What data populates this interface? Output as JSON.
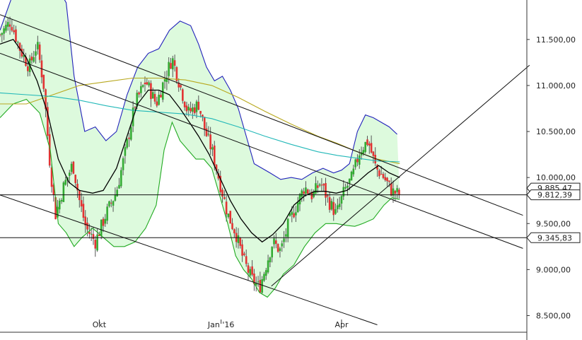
{
  "chart_data": {
    "type": "candlestick",
    "title": "",
    "xlabel": "",
    "ylabel": "",
    "ylim": [
      8250,
      12000
    ],
    "grid": false,
    "x_ticks": [
      {
        "label": "Okt",
        "day": 75
      },
      {
        "label": "Jan '16",
        "day": 167
      },
      {
        "label": "Apr",
        "day": 258
      }
    ],
    "y_ticks": [
      {
        "label": "11.500,00",
        "value": 11500
      },
      {
        "label": "11.000,00",
        "value": 11000
      },
      {
        "label": "10.500,00",
        "value": 10500
      },
      {
        "label": "10.000,00",
        "value": 10000
      },
      {
        "label": "9.500,00",
        "value": 9500
      },
      {
        "label": "9.000,00",
        "value": 9000
      },
      {
        "label": "8.500,00",
        "value": 8500
      }
    ],
    "price_tags": [
      {
        "label": "9.885,47",
        "value": 9885
      },
      {
        "label": "9.812,39",
        "value": 9812
      },
      {
        "label": "9.345,83",
        "value": 9346
      }
    ],
    "horizontal_lines": [
      9812,
      9346
    ],
    "trend_lines": [
      {
        "name": "",
        "from": [
          0,
          11770
        ],
        "to": [
          395,
          9590
        ]
      },
      {
        "name": "",
        "from": [
          0,
          11350
        ],
        "to": [
          395,
          9230
        ]
      },
      {
        "name": "",
        "from": [
          0,
          9810
        ],
        "to": [
          285,
          8400
        ]
      },
      {
        "name": "",
        "from": [
          205,
          8820
        ],
        "to": [
          400,
          11220
        ]
      }
    ],
    "series": [
      {
        "name": "",
        "kind": "close_path",
        "points": [
          [
            0,
            11550
          ],
          [
            8,
            11700
          ],
          [
            15,
            11400
          ],
          [
            22,
            11200
          ],
          [
            28,
            11450
          ],
          [
            33,
            11000
          ],
          [
            38,
            10100
          ],
          [
            42,
            9600
          ],
          [
            48,
            9900
          ],
          [
            55,
            10150
          ],
          [
            60,
            9750
          ],
          [
            65,
            9450
          ],
          [
            72,
            9300
          ],
          [
            80,
            9600
          ],
          [
            88,
            9850
          ],
          [
            95,
            10300
          ],
          [
            102,
            10800
          ],
          [
            110,
            11050
          ],
          [
            118,
            10800
          ],
          [
            125,
            11100
          ],
          [
            130,
            11300
          ],
          [
            136,
            11000
          ],
          [
            142,
            10700
          ],
          [
            150,
            10800
          ],
          [
            155,
            10500
          ],
          [
            160,
            10300
          ],
          [
            166,
            9950
          ],
          [
            172,
            9600
          ],
          [
            178,
            9400
          ],
          [
            184,
            9100
          ],
          [
            190,
            8900
          ],
          [
            196,
            8800
          ],
          [
            200,
            9000
          ],
          [
            206,
            9300
          ],
          [
            212,
            9200
          ],
          [
            218,
            9500
          ],
          [
            224,
            9700
          ],
          [
            230,
            9900
          ],
          [
            236,
            9800
          ],
          [
            242,
            9950
          ],
          [
            248,
            9750
          ],
          [
            254,
            9600
          ],
          [
            260,
            9850
          ],
          [
            266,
            10000
          ],
          [
            272,
            10300
          ],
          [
            278,
            10400
          ],
          [
            284,
            10100
          ],
          [
            290,
            10000
          ],
          [
            296,
            9850
          ],
          [
            302,
            9812
          ]
        ]
      },
      {
        "name": "",
        "kind": "sma_20",
        "points": [
          [
            0,
            11450
          ],
          [
            10,
            11500
          ],
          [
            20,
            11300
          ],
          [
            28,
            11050
          ],
          [
            36,
            10700
          ],
          [
            44,
            10200
          ],
          [
            52,
            9950
          ],
          [
            60,
            9860
          ],
          [
            70,
            9830
          ],
          [
            78,
            9860
          ],
          [
            88,
            10100
          ],
          [
            96,
            10450
          ],
          [
            104,
            10800
          ],
          [
            112,
            10950
          ],
          [
            120,
            10950
          ],
          [
            128,
            10900
          ],
          [
            136,
            10750
          ],
          [
            144,
            10580
          ],
          [
            150,
            10450
          ],
          [
            158,
            10250
          ],
          [
            166,
            10000
          ],
          [
            174,
            9750
          ],
          [
            182,
            9550
          ],
          [
            190,
            9400
          ],
          [
            198,
            9300
          ],
          [
            206,
            9380
          ],
          [
            214,
            9500
          ],
          [
            222,
            9700
          ],
          [
            230,
            9800
          ],
          [
            238,
            9850
          ],
          [
            246,
            9850
          ],
          [
            254,
            9830
          ],
          [
            262,
            9860
          ],
          [
            270,
            9950
          ],
          [
            278,
            10050
          ],
          [
            286,
            10130
          ],
          [
            294,
            10050
          ],
          [
            302,
            10000
          ]
        ]
      },
      {
        "name": "",
        "kind": "bollinger_upper",
        "points": [
          [
            0,
            11600
          ],
          [
            10,
            12000
          ],
          [
            20,
            12000
          ],
          [
            30,
            12100
          ],
          [
            38,
            12150
          ],
          [
            44,
            12050
          ],
          [
            50,
            11900
          ],
          [
            56,
            11100
          ],
          [
            64,
            10500
          ],
          [
            72,
            10550
          ],
          [
            80,
            10400
          ],
          [
            88,
            10500
          ],
          [
            96,
            10900
          ],
          [
            104,
            11200
          ],
          [
            112,
            11350
          ],
          [
            120,
            11400
          ],
          [
            128,
            11600
          ],
          [
            136,
            11700
          ],
          [
            144,
            11650
          ],
          [
            150,
            11450
          ],
          [
            156,
            11200
          ],
          [
            162,
            11050
          ],
          [
            168,
            11100
          ],
          [
            174,
            10950
          ],
          [
            180,
            10750
          ],
          [
            186,
            10450
          ],
          [
            192,
            10150
          ],
          [
            198,
            10100
          ],
          [
            204,
            10050
          ],
          [
            212,
            9980
          ],
          [
            220,
            10000
          ],
          [
            228,
            9980
          ],
          [
            236,
            10050
          ],
          [
            244,
            10100
          ],
          [
            252,
            10050
          ],
          [
            258,
            10080
          ],
          [
            264,
            10150
          ],
          [
            270,
            10500
          ],
          [
            276,
            10680
          ],
          [
            282,
            10650
          ],
          [
            288,
            10600
          ],
          [
            294,
            10550
          ],
          [
            300,
            10470
          ]
        ]
      },
      {
        "name": "",
        "kind": "bollinger_lower",
        "points": [
          [
            0,
            10650
          ],
          [
            10,
            10800
          ],
          [
            20,
            10850
          ],
          [
            30,
            10700
          ],
          [
            38,
            10300
          ],
          [
            44,
            9500
          ],
          [
            50,
            9400
          ],
          [
            56,
            9250
          ],
          [
            62,
            9350
          ],
          [
            70,
            9450
          ],
          [
            78,
            9350
          ],
          [
            86,
            9250
          ],
          [
            94,
            9250
          ],
          [
            102,
            9300
          ],
          [
            110,
            9450
          ],
          [
            118,
            9700
          ],
          [
            124,
            10300
          ],
          [
            130,
            10600
          ],
          [
            136,
            10400
          ],
          [
            142,
            10300
          ],
          [
            148,
            10200
          ],
          [
            154,
            10200
          ],
          [
            160,
            10100
          ],
          [
            166,
            9800
          ],
          [
            172,
            9500
          ],
          [
            178,
            9150
          ],
          [
            184,
            9000
          ],
          [
            190,
            8900
          ],
          [
            196,
            8750
          ],
          [
            202,
            8700
          ],
          [
            208,
            8800
          ],
          [
            214,
            8950
          ],
          [
            222,
            9050
          ],
          [
            230,
            9250
          ],
          [
            238,
            9400
          ],
          [
            246,
            9500
          ],
          [
            254,
            9500
          ],
          [
            262,
            9480
          ],
          [
            268,
            9470
          ],
          [
            274,
            9500
          ],
          [
            282,
            9550
          ],
          [
            290,
            9700
          ],
          [
            296,
            9780
          ],
          [
            302,
            9760
          ]
        ]
      },
      {
        "name": "",
        "kind": "ma_100",
        "points": [
          [
            0,
            10800
          ],
          [
            20,
            10800
          ],
          [
            40,
            10900
          ],
          [
            60,
            11000
          ],
          [
            80,
            11040
          ],
          [
            100,
            11080
          ],
          [
            120,
            11080
          ],
          [
            140,
            11060
          ],
          [
            160,
            11000
          ],
          [
            180,
            10870
          ],
          [
            200,
            10720
          ],
          [
            220,
            10580
          ],
          [
            240,
            10450
          ],
          [
            255,
            10370
          ],
          [
            270,
            10280
          ],
          [
            285,
            10200
          ],
          [
            302,
            10150
          ]
        ]
      },
      {
        "name": "",
        "kind": "ma_200",
        "points": [
          [
            0,
            10920
          ],
          [
            20,
            10900
          ],
          [
            40,
            10880
          ],
          [
            60,
            10840
          ],
          [
            80,
            10780
          ],
          [
            100,
            10730
          ],
          [
            120,
            10710
          ],
          [
            140,
            10690
          ],
          [
            160,
            10640
          ],
          [
            180,
            10550
          ],
          [
            200,
            10450
          ],
          [
            220,
            10360
          ],
          [
            240,
            10280
          ],
          [
            255,
            10240
          ],
          [
            270,
            10210
          ],
          [
            285,
            10180
          ],
          [
            302,
            10170
          ]
        ]
      }
    ]
  },
  "colors": {
    "candle_up": "#33aa33",
    "candle_down": "#e23333",
    "sma": "#000000",
    "bollinger_upper": "#2222bb",
    "bollinger_lower": "#22aa22",
    "band_fill": "#ddfadd",
    "ma_100": "#b8a81e",
    "ma_200": "#22b8b8",
    "trend": "#111111"
  }
}
